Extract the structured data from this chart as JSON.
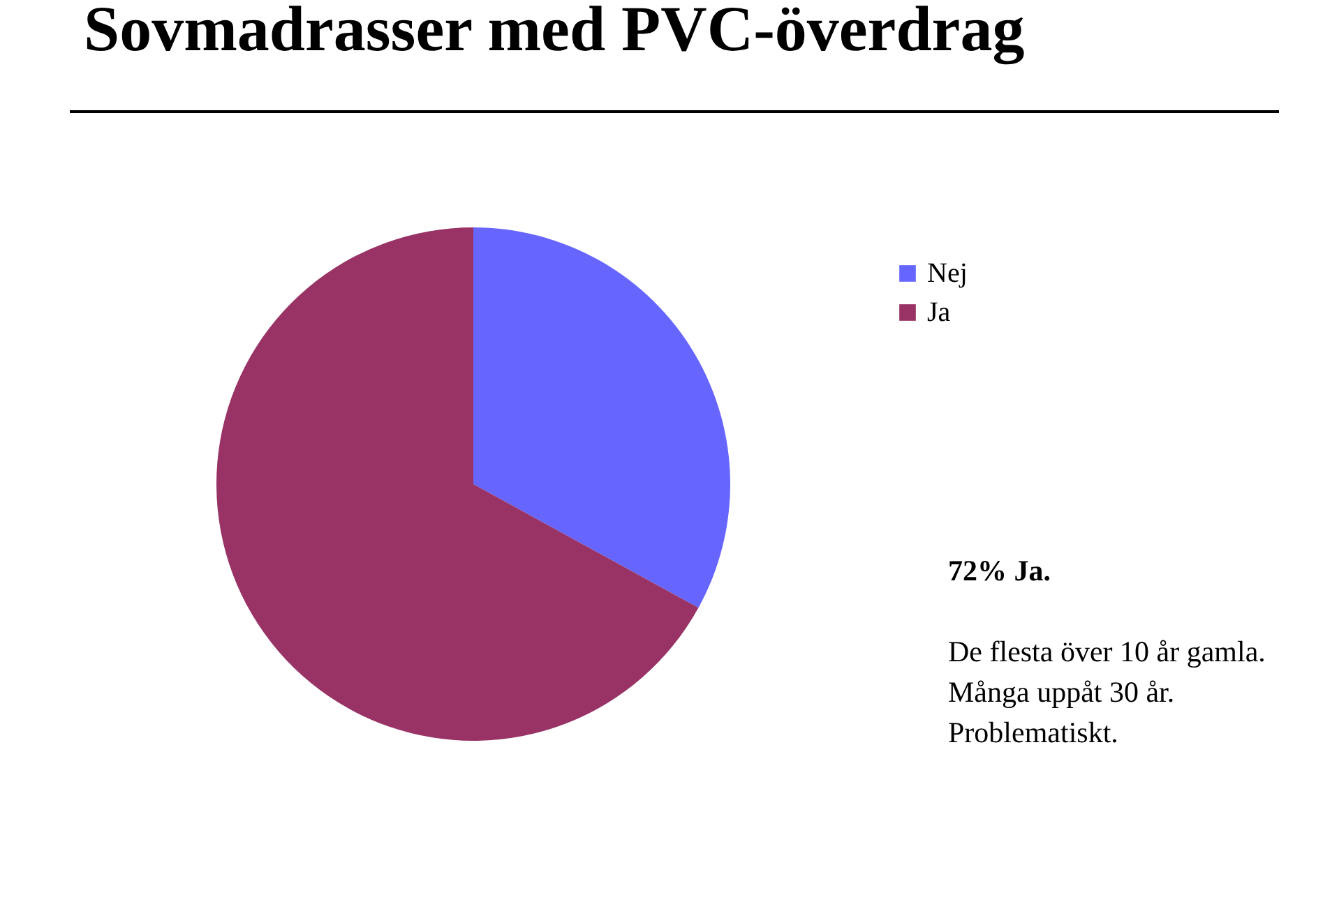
{
  "chart_data": {
    "type": "pie",
    "title": "Sovmadrasser med PVC-överdrag",
    "categories": [
      "Nej",
      "Ja"
    ],
    "values": [
      33,
      67
    ],
    "colors": [
      "#6666ff",
      "#993366"
    ],
    "legend": "top right",
    "annotations": [
      "72% Ja.",
      "De flesta över 10 år gamla.",
      "Många uppåt 30 år.",
      "Problematiskt."
    ]
  }
}
